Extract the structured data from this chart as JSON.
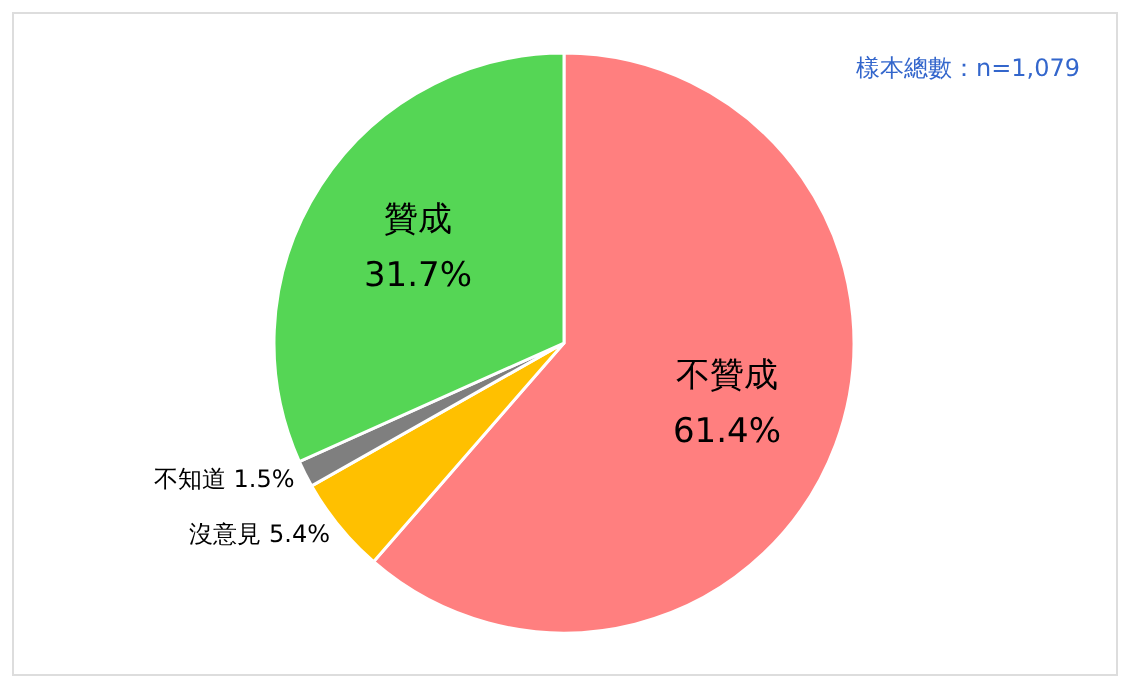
{
  "chart_data": {
    "type": "pie",
    "categories": [
      "不贊成",
      "沒意見",
      "不知道",
      "贊成"
    ],
    "values": [
      61.4,
      5.4,
      1.5,
      31.7
    ],
    "colors": [
      "#ff7f7f",
      "#ffc000",
      "#7f7f7f",
      "#55d655"
    ],
    "value_labels": [
      "61.4%",
      "5.4%",
      "1.5%",
      "31.7%"
    ],
    "annotations": [
      "樣本總數：n=1,079"
    ]
  }
}
